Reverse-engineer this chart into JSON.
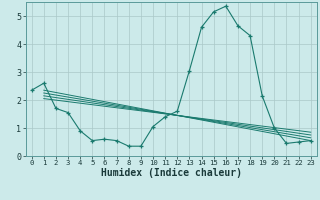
{
  "xlabel": "Humidex (Indice chaleur)",
  "background_color": "#cceaea",
  "line_color": "#1a7a6e",
  "grid_color": "#aac8c8",
  "xlim": [
    -0.5,
    23.5
  ],
  "ylim": [
    0,
    5.5
  ],
  "yticks": [
    0,
    1,
    2,
    3,
    4,
    5
  ],
  "xticks": [
    0,
    1,
    2,
    3,
    4,
    5,
    6,
    7,
    8,
    9,
    10,
    11,
    12,
    13,
    14,
    15,
    16,
    17,
    18,
    19,
    20,
    21,
    22,
    23
  ],
  "main_series": [
    2.35,
    2.6,
    1.7,
    1.55,
    0.9,
    0.55,
    0.6,
    0.55,
    0.35,
    0.35,
    1.05,
    1.4,
    1.6,
    3.05,
    4.6,
    5.15,
    5.35,
    4.65,
    4.3,
    2.15,
    1.0,
    0.45,
    0.5,
    0.55
  ],
  "trend_lines": [
    [
      [
        1,
        2.35
      ],
      [
        23,
        0.55
      ]
    ],
    [
      [
        1,
        2.25
      ],
      [
        23,
        0.65
      ]
    ],
    [
      [
        1,
        2.15
      ],
      [
        23,
        0.75
      ]
    ],
    [
      [
        1,
        2.05
      ],
      [
        23,
        0.85
      ]
    ]
  ]
}
